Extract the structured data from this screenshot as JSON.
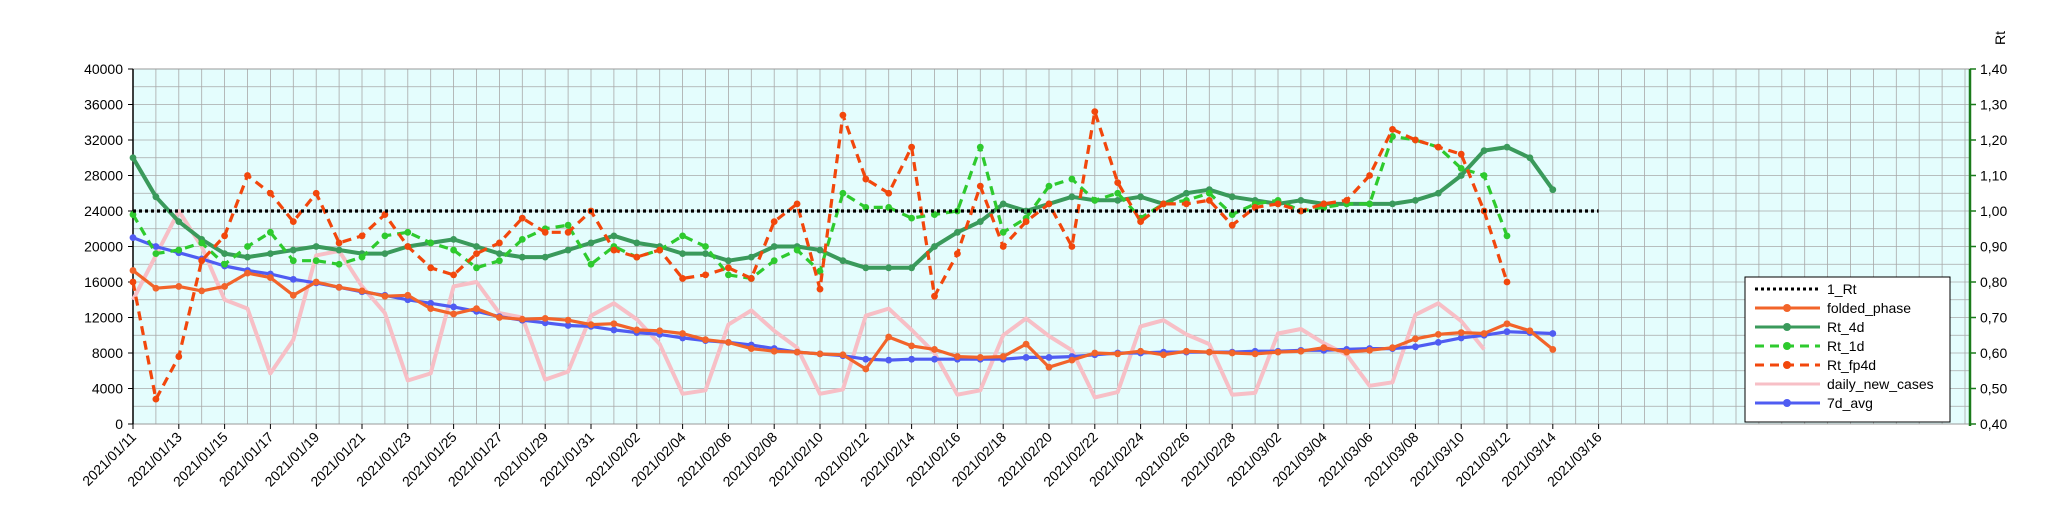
{
  "chart_data": {
    "type": "line",
    "title": "",
    "xlabel": "",
    "ylabel": "",
    "y2label": "Rt",
    "ylim": [
      0,
      40000
    ],
    "y2lim": [
      0.4,
      1.4
    ],
    "grid": true,
    "legend_position": "right",
    "x_tick_labels": [
      "2021/01/11",
      "2021/01/13",
      "2021/01/15",
      "2021/01/17",
      "2021/01/19",
      "2021/01/21",
      "2021/01/23",
      "2021/01/25",
      "2021/01/27",
      "2021/01/29",
      "2021/01/31",
      "2021/02/02",
      "2021/02/04",
      "2021/02/06",
      "2021/02/08",
      "2021/02/10",
      "2021/02/12",
      "2021/02/14",
      "2021/02/16",
      "2021/02/18",
      "2021/02/20",
      "2021/02/22",
      "2021/02/24",
      "2021/02/26",
      "2021/02/28",
      "2021/03/02",
      "2021/03/04",
      "2021/03/06",
      "2021/03/08",
      "2021/03/10",
      "2021/03/12",
      "2021/03/14",
      "2021/03/16"
    ],
    "y_ticks": [
      "0",
      "4000",
      "8000",
      "12000",
      "16000",
      "20000",
      "24000",
      "28000",
      "32000",
      "36000",
      "40000"
    ],
    "y2_ticks": [
      "0,40",
      "0,50",
      "0,60",
      "0,70",
      "0,80",
      "0,90",
      "1,00",
      "1,10",
      "1,20",
      "1,30",
      "1,40"
    ],
    "series": [
      {
        "name": "1_Rt",
        "axis": "y2",
        "color": "#000000",
        "style": "dotted",
        "marker": "none",
        "values": [
          1,
          1,
          1,
          1,
          1,
          1,
          1,
          1,
          1,
          1,
          1,
          1,
          1,
          1,
          1,
          1,
          1,
          1,
          1,
          1,
          1,
          1,
          1,
          1,
          1,
          1,
          1,
          1,
          1,
          1,
          1,
          1,
          1,
          1,
          1,
          1,
          1,
          1,
          1,
          1,
          1,
          1,
          1,
          1,
          1,
          1,
          1,
          1,
          1,
          1,
          1,
          1,
          1,
          1,
          1,
          1,
          1,
          1,
          1,
          1,
          1,
          1,
          1,
          1,
          1
        ]
      },
      {
        "name": "folded_phase",
        "axis": "y",
        "color": "#f2642a",
        "style": "solid",
        "marker": "circle",
        "values": [
          17300,
          15300,
          15500,
          15000,
          15500,
          17000,
          16500,
          14500,
          16000,
          15400,
          15000,
          14400,
          14500,
          13000,
          12400,
          13000,
          12000,
          11800,
          11900,
          11700,
          11200,
          11300,
          10600,
          10500,
          10200,
          9500,
          9200,
          8500,
          8200,
          8100,
          7900,
          7800,
          6200,
          9800,
          8800,
          8400,
          7600,
          7500,
          7600,
          9000,
          6400,
          7200,
          8000,
          7900,
          8200,
          7800,
          8200,
          8100,
          8000,
          7900,
          8100,
          8200,
          8600,
          8100,
          8300,
          8600,
          9600,
          10100,
          10300,
          10200,
          11300,
          10500,
          8400
        ]
      },
      {
        "name": "Rt_4d",
        "axis": "y2",
        "color": "#3a9a5b",
        "style": "solid",
        "marker": "circle",
        "values": [
          1.15,
          1.04,
          0.97,
          0.92,
          0.88,
          0.87,
          0.88,
          0.89,
          0.9,
          0.89,
          0.88,
          0.88,
          0.9,
          0.91,
          0.92,
          0.9,
          0.88,
          0.87,
          0.87,
          0.89,
          0.91,
          0.93,
          0.91,
          0.9,
          0.88,
          0.88,
          0.86,
          0.87,
          0.9,
          0.9,
          0.89,
          0.86,
          0.84,
          0.84,
          0.84,
          0.9,
          0.94,
          0.97,
          1.02,
          1.0,
          1.02,
          1.04,
          1.03,
          1.03,
          1.04,
          1.02,
          1.05,
          1.06,
          1.04,
          1.03,
          1.02,
          1.03,
          1.02,
          1.02,
          1.02,
          1.02,
          1.03,
          1.05,
          1.1,
          1.17,
          1.18,
          1.15,
          1.06
        ]
      },
      {
        "name": "Rt_1d",
        "axis": "y2",
        "color": "#2eca2e",
        "style": "dashed",
        "marker": "circle",
        "values": [
          0.99,
          0.88,
          0.89,
          0.91,
          0.85,
          0.9,
          0.94,
          0.86,
          0.86,
          0.85,
          0.87,
          0.93,
          0.94,
          0.91,
          0.89,
          0.84,
          0.86,
          0.92,
          0.95,
          0.96,
          0.85,
          0.9,
          0.87,
          0.89,
          0.93,
          0.9,
          0.82,
          0.81,
          0.86,
          0.89,
          0.83,
          1.05,
          1.01,
          1.01,
          0.98,
          0.99,
          1.0,
          1.18,
          0.94,
          0.98,
          1.07,
          1.09,
          1.03,
          1.05,
          0.98,
          1.02,
          1.03,
          1.05,
          0.99,
          1.02,
          1.03,
          1.0,
          1.01,
          1.02,
          1.02,
          1.21,
          1.2,
          1.18,
          1.12,
          1.1,
          0.93
        ]
      },
      {
        "name": "Rt_fp4d",
        "axis": "y2",
        "color": "#f2470c",
        "style": "dashed",
        "marker": "circle",
        "values": [
          0.8,
          0.47,
          0.59,
          0.86,
          0.93,
          1.1,
          1.05,
          0.97,
          1.05,
          0.91,
          0.93,
          0.99,
          0.9,
          0.84,
          0.82,
          0.88,
          0.91,
          0.98,
          0.94,
          0.94,
          1.0,
          0.89,
          0.87,
          0.89,
          0.81,
          0.82,
          0.84,
          0.81,
          0.97,
          1.02,
          0.78,
          1.27,
          1.09,
          1.05,
          1.18,
          0.76,
          0.88,
          1.07,
          0.9,
          0.97,
          1.02,
          0.9,
          1.28,
          1.08,
          0.97,
          1.02,
          1.02,
          1.03,
          0.96,
          1.01,
          1.02,
          1.0,
          1.02,
          1.03,
          1.1,
          1.23,
          1.2,
          1.18,
          1.16,
          1.0,
          0.8
        ]
      },
      {
        "name": "daily_new_cases",
        "axis": "y",
        "color": "#f7bfc6",
        "style": "solid",
        "marker": "none",
        "values": [
          14000,
          19000,
          24000,
          20000,
          14000,
          13000,
          5700,
          9500,
          19000,
          19500,
          15500,
          12500,
          4900,
          5700,
          15500,
          16000,
          12500,
          12000,
          5000,
          5900,
          12200,
          13600,
          11800,
          9000,
          3400,
          3800,
          11200,
          12800,
          10500,
          8600,
          3400,
          3900,
          12200,
          13000,
          10600,
          8000,
          3300,
          3800,
          10000,
          11900,
          9900,
          8300,
          3000,
          3600,
          11000,
          11700,
          10100,
          9000,
          3300,
          3500,
          10200,
          10700,
          9100,
          7800,
          4300,
          4700,
          12300,
          13600,
          11600,
          8400
        ]
      },
      {
        "name": "7d_avg",
        "axis": "y",
        "color": "#4f5cf2",
        "style": "solid",
        "marker": "circle",
        "values": [
          21000,
          20000,
          19300,
          18600,
          17800,
          17300,
          16900,
          16300,
          15900,
          15400,
          14900,
          14500,
          14000,
          13600,
          13200,
          12700,
          12100,
          11700,
          11400,
          11100,
          11000,
          10600,
          10300,
          10100,
          9700,
          9400,
          9200,
          8900,
          8500,
          8100,
          7900,
          7700,
          7300,
          7200,
          7300,
          7300,
          7300,
          7300,
          7300,
          7500,
          7500,
          7600,
          7800,
          8000,
          8000,
          8100,
          8100,
          8100,
          8100,
          8200,
          8200,
          8300,
          8300,
          8400,
          8500,
          8500,
          8700,
          9200,
          9700,
          10000,
          10400,
          10300,
          10200
        ]
      }
    ]
  }
}
